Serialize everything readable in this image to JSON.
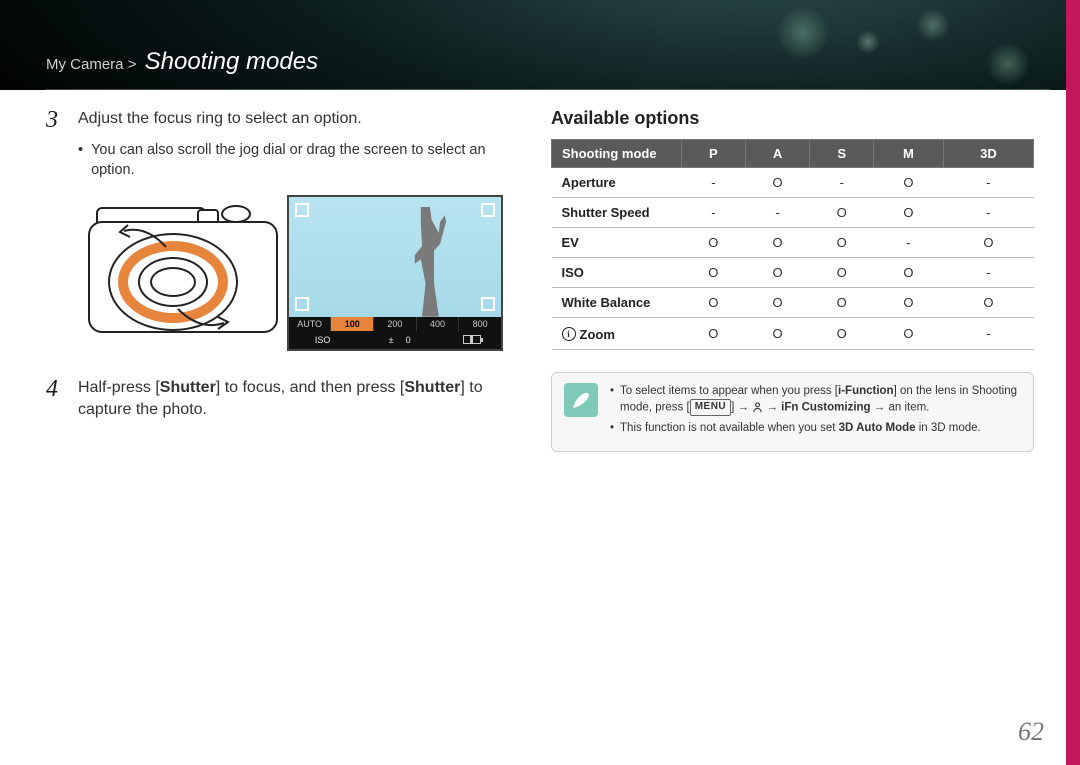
{
  "header": {
    "section": "My Camera",
    "sep": ">",
    "title": "Shooting modes"
  },
  "left": {
    "step3": {
      "num": "3",
      "text": "Adjust the focus ring to select an option."
    },
    "step3_sub": "You can also scroll the jog dial or drag the screen to select an option.",
    "lcd": {
      "iso_values": [
        "AUTO",
        "100",
        "200",
        "400",
        "800"
      ],
      "iso_active_index": 1,
      "status_iso_label": "ISO",
      "status_ev_icon": "±",
      "status_ev_value": "0"
    },
    "step4": {
      "num": "4",
      "pre": "Half-press [",
      "b1": "Shutter",
      "mid": "] to focus, and then press [",
      "b2": "Shutter",
      "post": "] to capture the photo."
    }
  },
  "right": {
    "heading": "Available options",
    "table": {
      "corner": "Shooting mode",
      "cols": [
        "P",
        "A",
        "S",
        "M",
        "3D"
      ],
      "rows": [
        {
          "label": "Aperture",
          "cells": [
            "-",
            "O",
            "-",
            "O",
            "-"
          ]
        },
        {
          "label": "Shutter Speed",
          "cells": [
            "-",
            "-",
            "O",
            "O",
            "-"
          ]
        },
        {
          "label": "EV",
          "cells": [
            "O",
            "O",
            "O",
            "-",
            "O"
          ]
        },
        {
          "label": "ISO",
          "cells": [
            "O",
            "O",
            "O",
            "O",
            "-"
          ]
        },
        {
          "label": "White Balance",
          "cells": [
            "O",
            "O",
            "O",
            "O",
            "O"
          ]
        },
        {
          "label": "Zoom",
          "zoom": true,
          "cells": [
            "O",
            "O",
            "O",
            "O",
            "-"
          ]
        }
      ]
    },
    "note": {
      "line1_pre": "To select items to appear when you press [",
      "line1_b1": "i-Function",
      "line1_mid1": "] on the lens in Shooting mode, press [",
      "line1_menu": "MENU",
      "line1_mid2": "] → ",
      "line1_mid3": " → ",
      "line1_b2": "iFn Customizing",
      "line1_post": " → an item.",
      "line2_pre": "This function is not available when you set ",
      "line2_b": "3D Auto Mode",
      "line2_post": " in 3D mode."
    }
  },
  "page_number": "62",
  "colors": {
    "accent": "#c2185b",
    "lens_ring": "#e8853d",
    "note_icon_bg": "#7fc9b8",
    "table_header_bg": "#5a5a5a"
  }
}
